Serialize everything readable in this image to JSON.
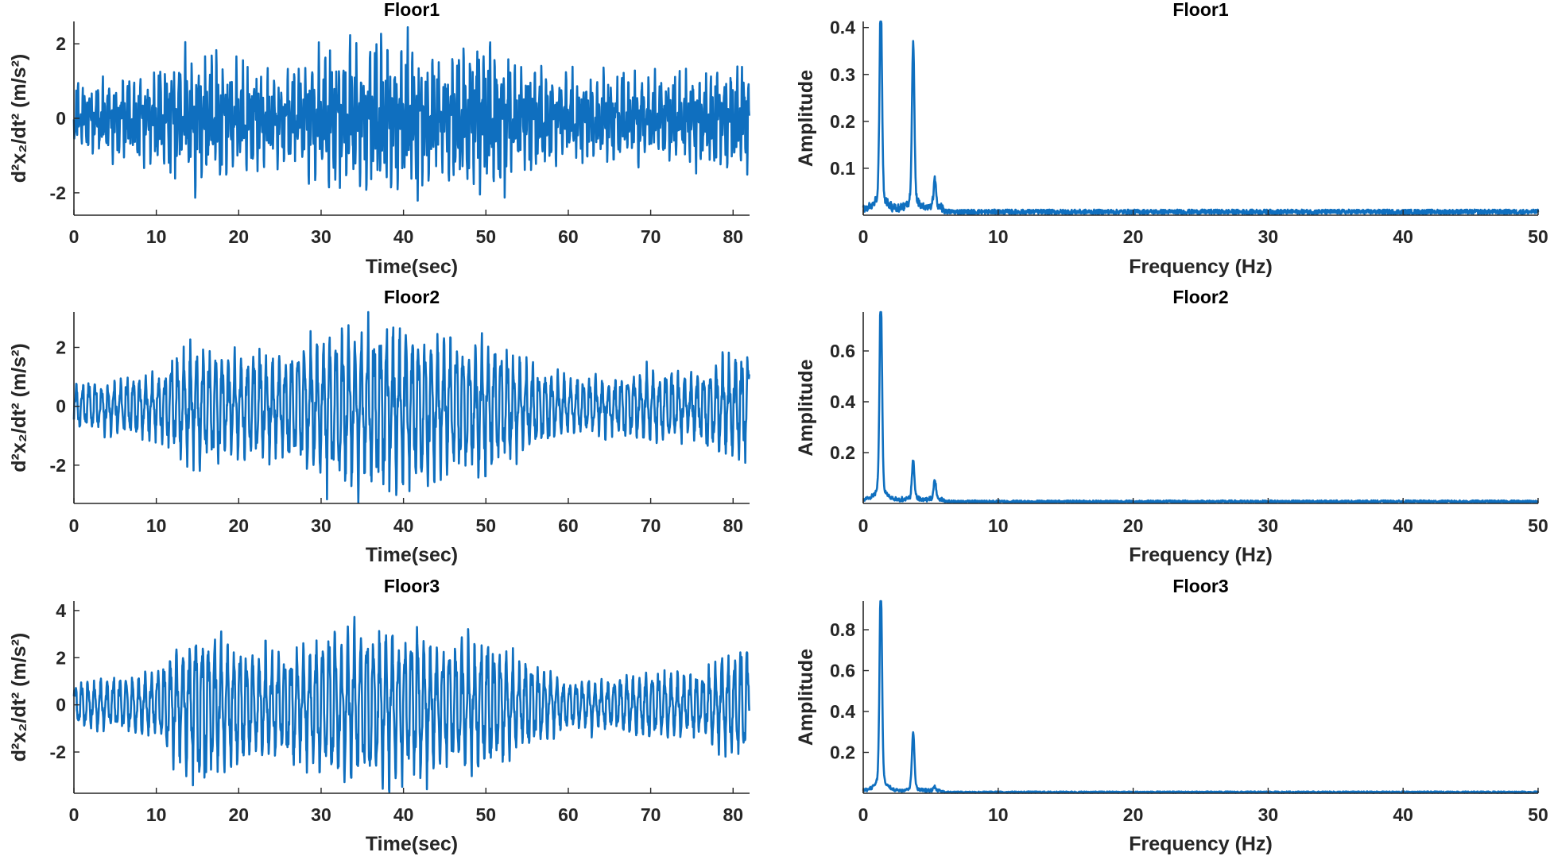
{
  "chart_data": [
    {
      "type": "line",
      "panel": "time",
      "title": "Floor1",
      "xlabel": "Time(sec)",
      "ylabel": "d²x₂/dt² (m/s²)",
      "xlim": [
        0,
        82
      ],
      "ylim": [
        -2.6,
        2.6
      ],
      "xticks": [
        0,
        10,
        20,
        30,
        40,
        50,
        60,
        70,
        80
      ],
      "yticks": [
        -2,
        0,
        2
      ],
      "line_color": "#0F6FBF",
      "grid": false,
      "dominant_freqs_hz": [
        1.3,
        3.7,
        5.3
      ],
      "component_weights": [
        0.35,
        0.45,
        0.3
      ],
      "envelope_t": [
        0,
        5,
        10,
        15,
        20,
        25,
        30,
        35,
        40,
        45,
        50,
        55,
        60,
        65,
        70,
        75,
        80,
        82
      ],
      "envelope_amp": [
        1.0,
        1.2,
        1.5,
        2.0,
        1.6,
        1.3,
        2.0,
        2.1,
        2.3,
        1.8,
        2.4,
        1.6,
        1.3,
        1.3,
        1.3,
        1.4,
        1.6,
        1.8
      ]
    },
    {
      "type": "line",
      "panel": "spectrum",
      "title": "Floor1",
      "xlabel": "Frequency (Hz)",
      "ylabel": "Amplitude",
      "xlim": [
        0,
        50
      ],
      "ylim": [
        0,
        0.413
      ],
      "xticks": [
        0,
        10,
        20,
        30,
        40,
        50
      ],
      "yticks": [
        0.1,
        0.2,
        0.3,
        0.4
      ],
      "line_color": "#0F6FBF",
      "grid": false,
      "noise_floor": 0.008,
      "peaks": [
        {
          "f": 1.3,
          "a": 0.41
        },
        {
          "f": 3.7,
          "a": 0.32
        },
        {
          "f": 5.3,
          "a": 0.058
        }
      ]
    },
    {
      "type": "line",
      "panel": "time",
      "title": "Floor2",
      "xlabel": "Time(sec)",
      "ylabel": "d²x₂/dt² (m/s²)",
      "xlim": [
        0,
        82
      ],
      "ylim": [
        -3.3,
        3.2
      ],
      "xticks": [
        0,
        10,
        20,
        30,
        40,
        50,
        60,
        70,
        80
      ],
      "yticks": [
        -2,
        0,
        2
      ],
      "line_color": "#0F6FBF",
      "grid": false,
      "dominant_freqs_hz": [
        1.3,
        3.7,
        5.3
      ],
      "component_weights": [
        0.75,
        0.2,
        0.1
      ],
      "envelope_t": [
        0,
        5,
        10,
        15,
        20,
        25,
        30,
        35,
        40,
        45,
        50,
        55,
        60,
        65,
        70,
        75,
        80,
        82
      ],
      "envelope_amp": [
        0.8,
        1.0,
        1.2,
        2.3,
        1.9,
        1.8,
        2.6,
        2.9,
        3.0,
        2.4,
        2.4,
        1.6,
        1.0,
        1.0,
        1.3,
        1.2,
        1.8,
        2.2
      ]
    },
    {
      "type": "line",
      "panel": "spectrum",
      "title": "Floor2",
      "xlabel": "Frequency (Hz)",
      "ylabel": "Amplitude",
      "xlim": [
        0,
        50
      ],
      "ylim": [
        0,
        0.753
      ],
      "xticks": [
        0,
        10,
        20,
        30,
        40,
        50
      ],
      "yticks": [
        0.2,
        0.4,
        0.6
      ],
      "line_color": "#0F6FBF",
      "grid": false,
      "noise_floor": 0.008,
      "peaks": [
        {
          "f": 1.3,
          "a": 0.75
        },
        {
          "f": 3.7,
          "a": 0.14
        },
        {
          "f": 5.3,
          "a": 0.07
        }
      ]
    },
    {
      "type": "line",
      "panel": "time",
      "title": "Floor3",
      "xlabel": "Time(sec)",
      "ylabel": "d²x₂/dt² (m/s²)",
      "xlim": [
        0,
        82
      ],
      "ylim": [
        -3.75,
        4.4
      ],
      "xticks": [
        0,
        10,
        20,
        30,
        40,
        50,
        60,
        70,
        80
      ],
      "yticks": [
        -2,
        0,
        2,
        4
      ],
      "line_color": "#0F6FBF",
      "grid": false,
      "dominant_freqs_hz": [
        1.3,
        3.7,
        5.3
      ],
      "component_weights": [
        0.8,
        0.2,
        0.05
      ],
      "envelope_t": [
        0,
        5,
        10,
        15,
        20,
        25,
        30,
        35,
        40,
        45,
        50,
        55,
        60,
        65,
        70,
        75,
        80,
        82
      ],
      "envelope_amp": [
        1.0,
        1.2,
        1.5,
        3.4,
        2.5,
        2.2,
        3.0,
        3.3,
        3.4,
        2.6,
        2.8,
        1.8,
        1.1,
        1.1,
        1.5,
        1.3,
        2.2,
        2.8
      ]
    },
    {
      "type": "line",
      "panel": "spectrum",
      "title": "Floor3",
      "xlabel": "Frequency (Hz)",
      "ylabel": "Amplitude",
      "xlim": [
        0,
        50
      ],
      "ylim": [
        0,
        0.94
      ],
      "xticks": [
        0,
        10,
        20,
        30,
        40,
        50
      ],
      "yticks": [
        0.2,
        0.4,
        0.6,
        0.8
      ],
      "line_color": "#0F6FBF",
      "grid": false,
      "noise_floor": 0.006,
      "peaks": [
        {
          "f": 1.3,
          "a": 0.93
        },
        {
          "f": 3.7,
          "a": 0.26
        },
        {
          "f": 5.3,
          "a": 0.02
        }
      ]
    }
  ]
}
